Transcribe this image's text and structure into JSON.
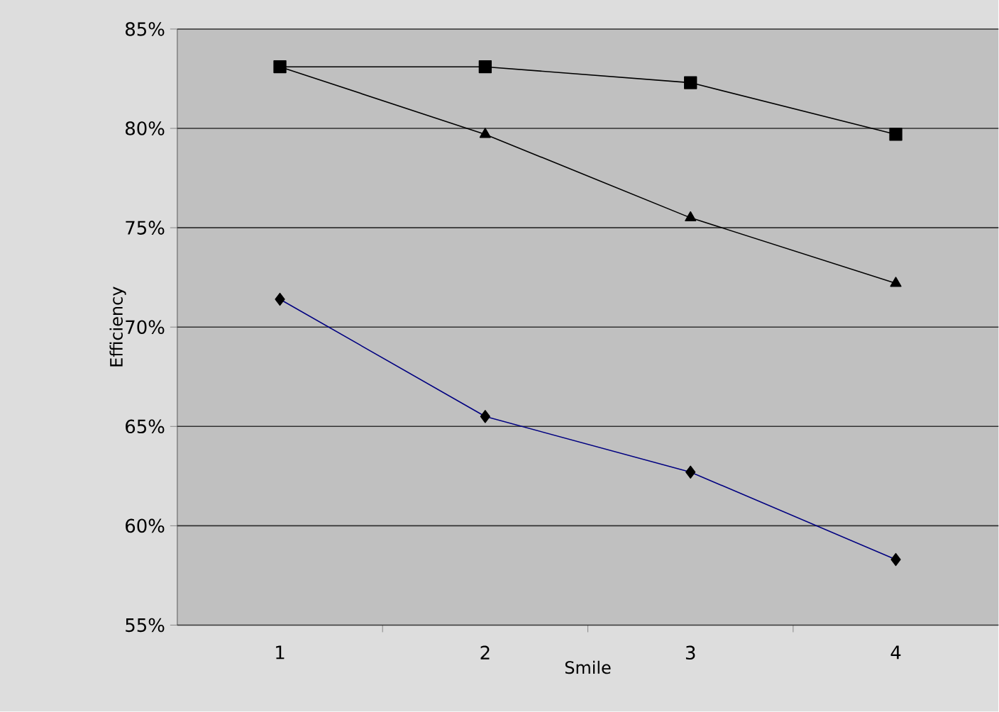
{
  "chart_data": {
    "type": "line",
    "xlabel": "Smile",
    "ylabel": "Efficiency",
    "categories": [
      "1",
      "2",
      "3",
      "4"
    ],
    "series": [
      {
        "color": "#000080",
        "marker": "diamond",
        "values": [
          71.4,
          65.5,
          62.7,
          58.3
        ]
      },
      {
        "color": "#000000",
        "marker": "square",
        "values": [
          83.1,
          83.1,
          82.3,
          79.7
        ]
      },
      {
        "color": "#000000",
        "marker": "triangle",
        "values": [
          83.1,
          79.7,
          75.5,
          72.2
        ]
      }
    ],
    "ylim": [
      55,
      85
    ],
    "yticks": [
      {
        "value": 55,
        "label": "55%"
      },
      {
        "value": 60,
        "label": "60%"
      },
      {
        "value": 65,
        "label": "65%"
      },
      {
        "value": 70,
        "label": "70%"
      },
      {
        "value": 75,
        "label": "75%"
      },
      {
        "value": 80,
        "label": "80%"
      },
      {
        "value": 85,
        "label": "85%"
      }
    ],
    "grid": "y"
  }
}
